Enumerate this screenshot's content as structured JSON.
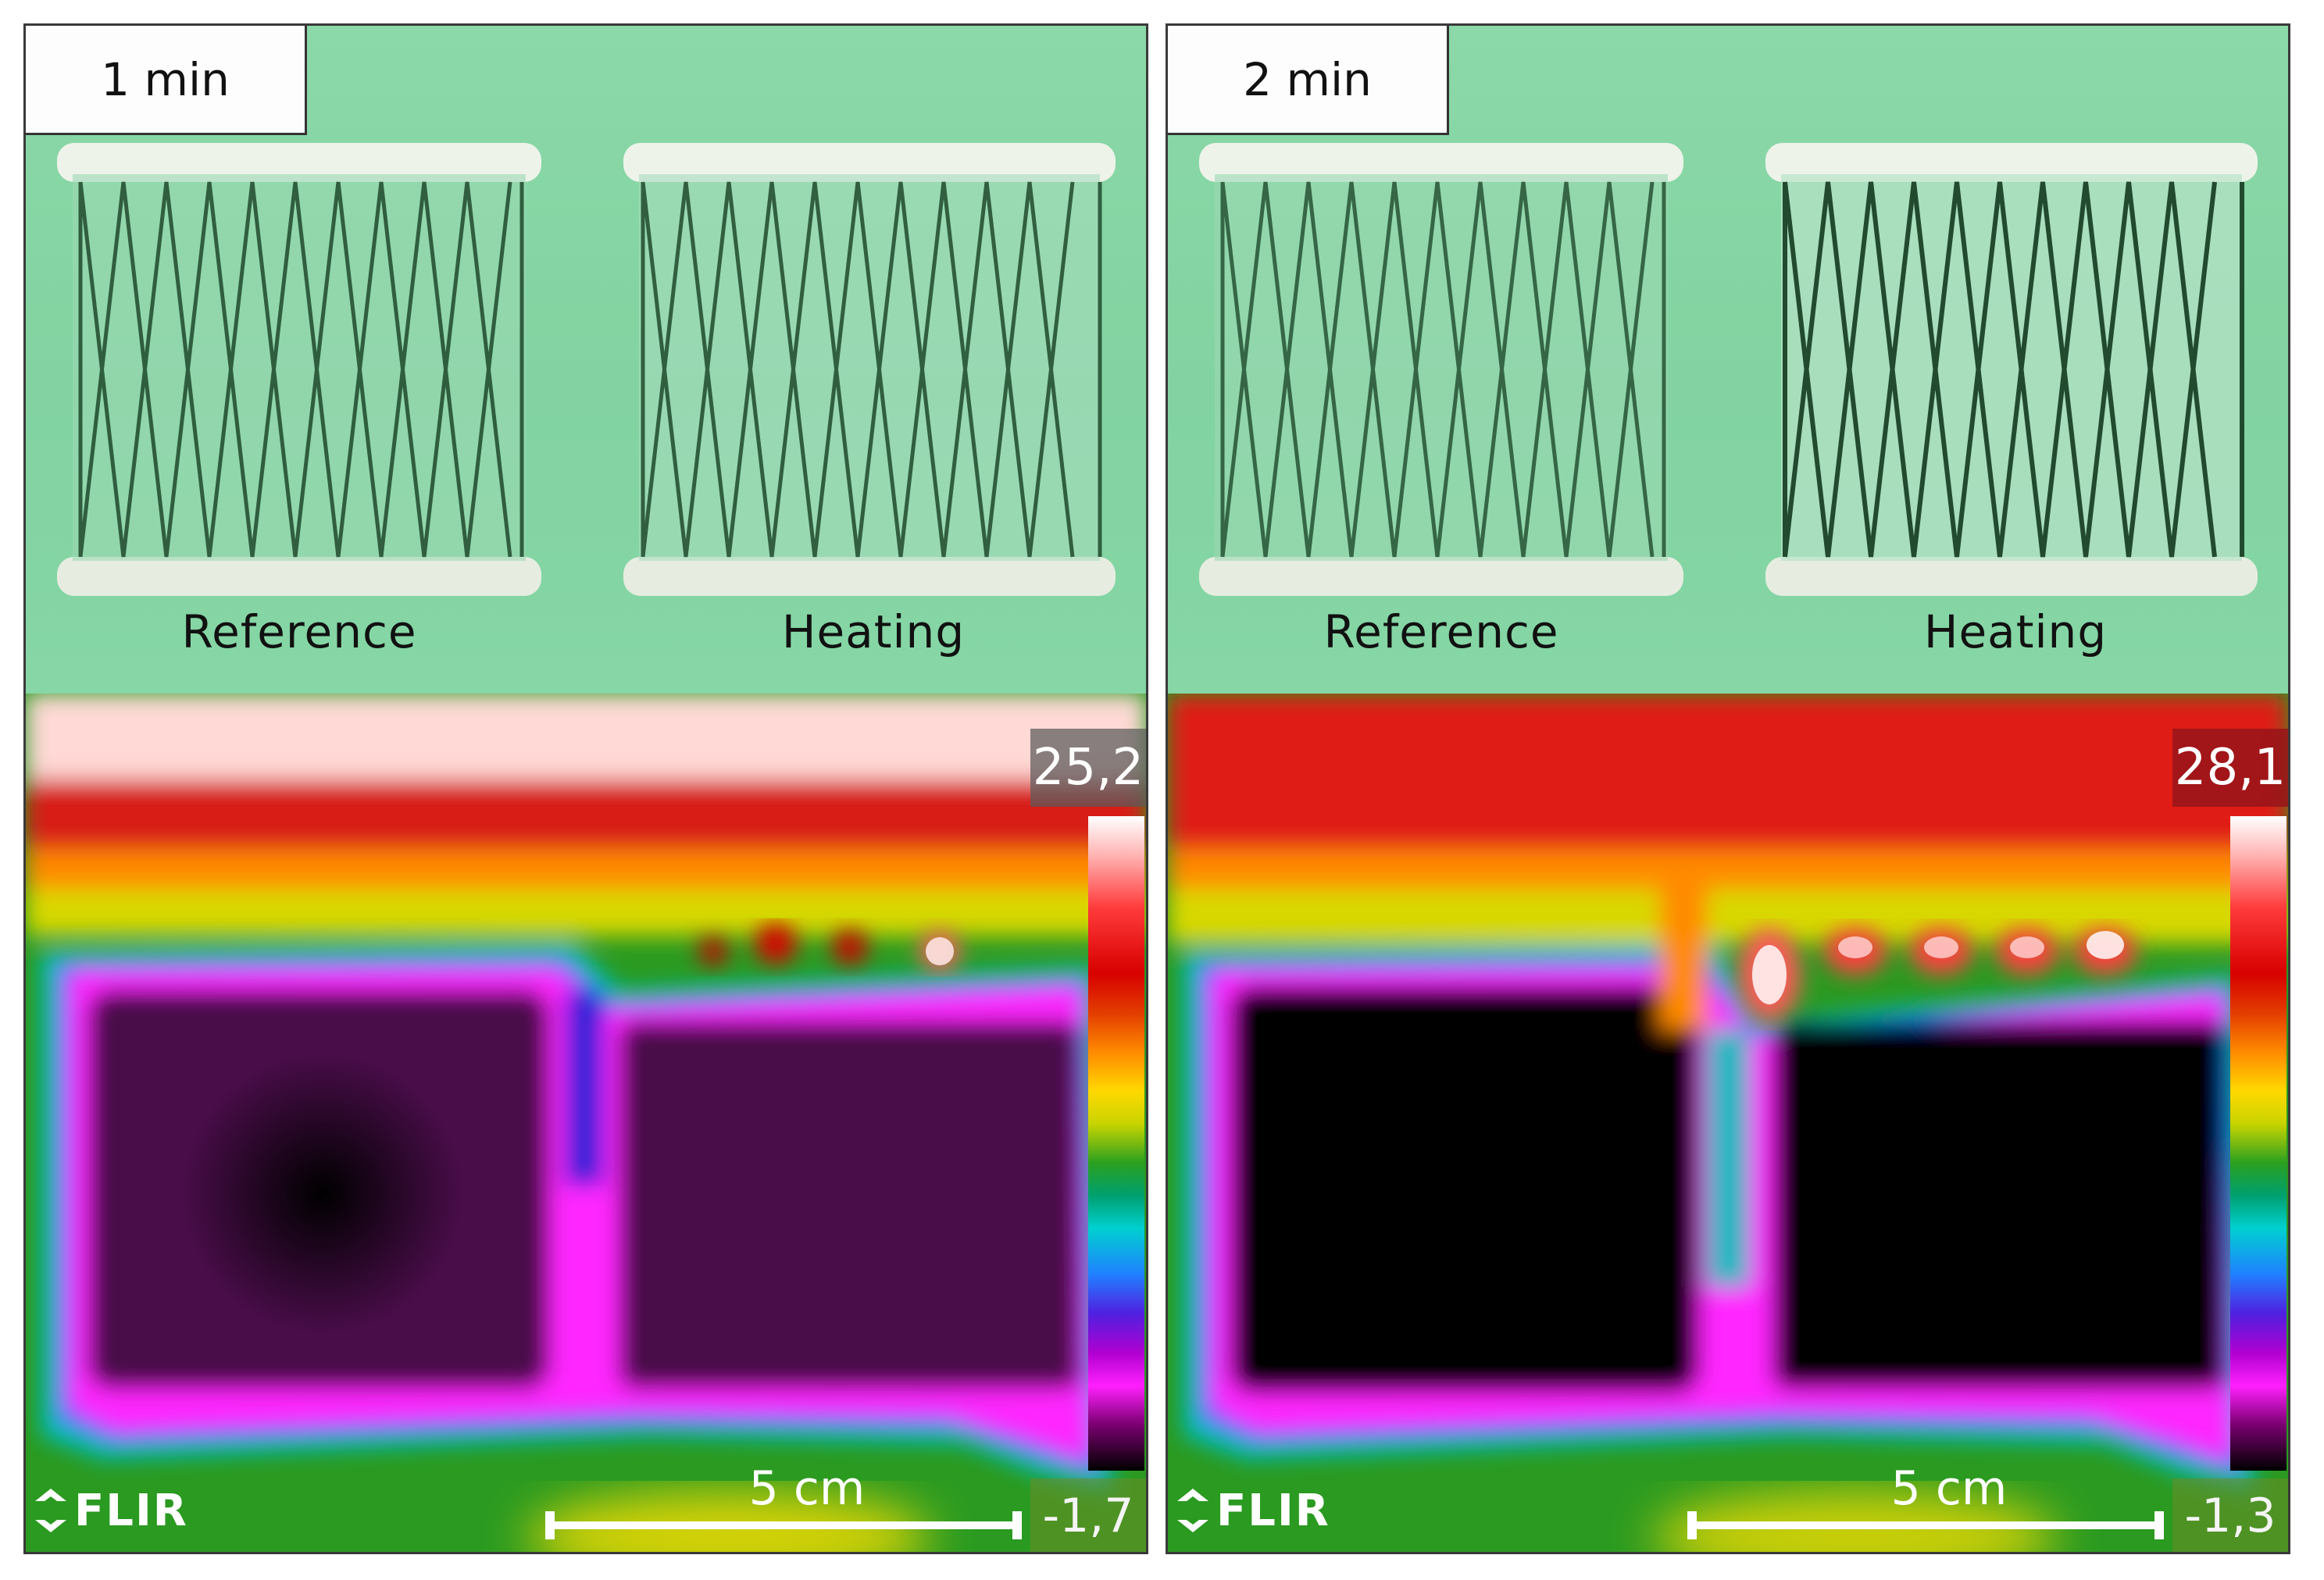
{
  "panels": [
    {
      "time": "1 min",
      "left_label": "Reference",
      "right_label": "Heating",
      "scale_max": "25,2",
      "scale_min": "-1,7",
      "logo": "FLIR",
      "scalebar_label": "5 cm"
    },
    {
      "time": "2 min",
      "left_label": "Reference",
      "right_label": "Heating",
      "scale_max": "28,1",
      "scale_min": "-1,3",
      "logo": "FLIR",
      "scalebar_label": "5 cm"
    }
  ],
  "colors": {
    "background_green": "#86d6a4",
    "hot": "#d80000",
    "cold": "#000000",
    "magenta": "#ff20ff",
    "cyan": "#00d0d0"
  }
}
